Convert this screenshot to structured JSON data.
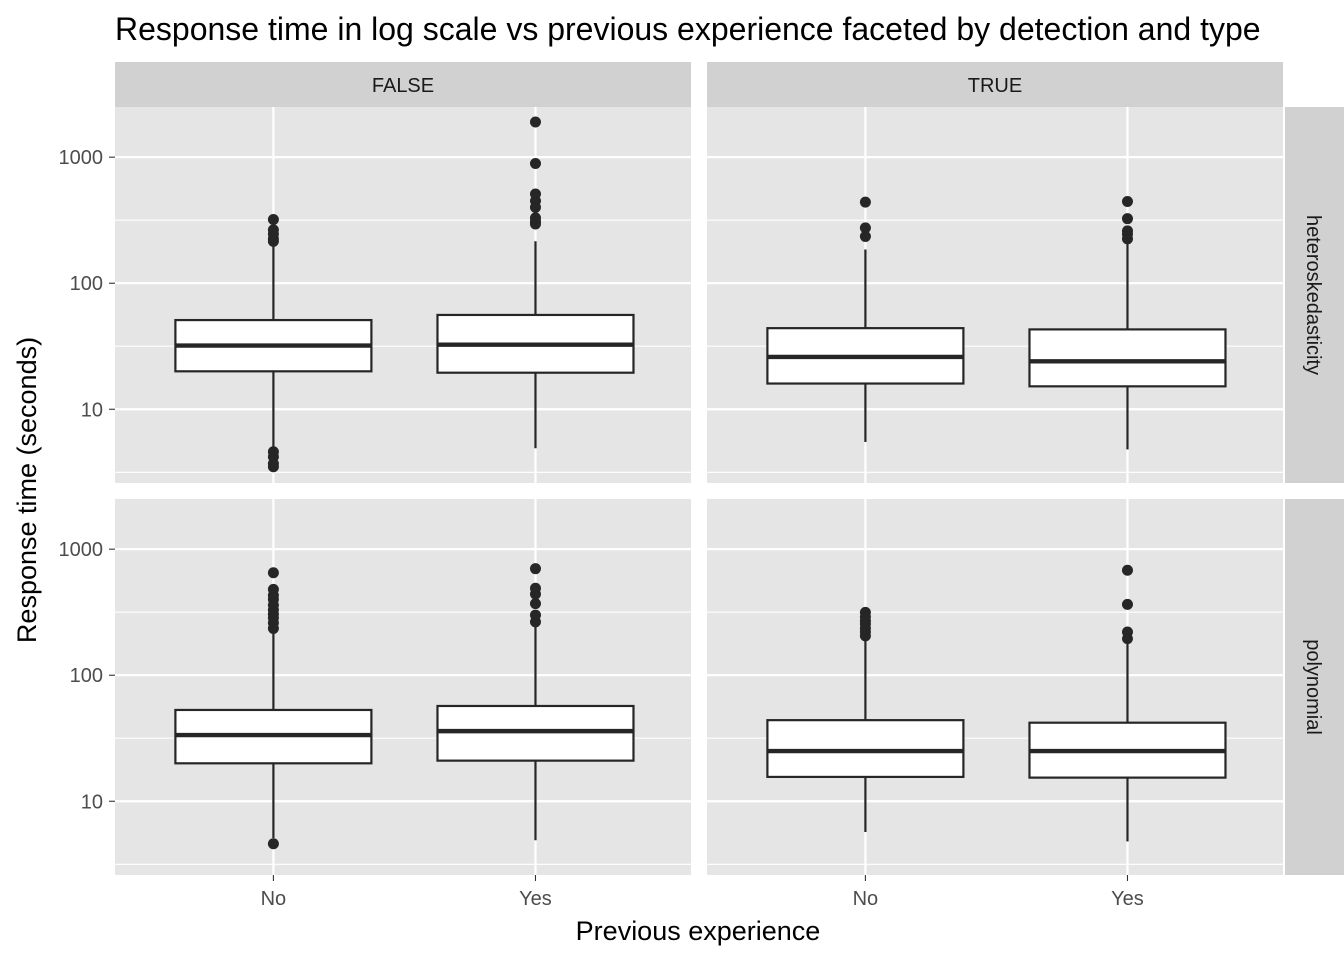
{
  "chart_data": {
    "type": "box",
    "title": "Response time in log scale vs previous experience faceted by detection and type",
    "xlabel": "Previous experience",
    "ylabel": "Response time (seconds)",
    "y_scale": "log10",
    "ylim": [
      2.6,
      2500
    ],
    "y_major_ticks": [
      10,
      100,
      1000
    ],
    "y_tick_labels": [
      "10",
      "100",
      "1000"
    ],
    "categories": [
      "No",
      "Yes"
    ],
    "grid": true,
    "col_facets": [
      "FALSE",
      "TRUE"
    ],
    "row_facets": [
      "heteroskedasticity",
      "polynomial"
    ],
    "panels": [
      {
        "col": "FALSE",
        "row": "heteroskedasticity",
        "boxes": [
          {
            "x": "No",
            "lower_whisker": 4.9,
            "q1": 20,
            "median": 32,
            "q3": 51,
            "upper_whisker": 205,
            "outliers": [
              3.5,
              3.7,
              4.2,
              4.6,
              215,
              225,
              245,
              265,
              320
            ]
          },
          {
            "x": "Yes",
            "lower_whisker": 4.9,
            "q1": 19.5,
            "median": 32.5,
            "q3": 56,
            "upper_whisker": 215,
            "outliers": [
              295,
              310,
              330,
              400,
              450,
              510,
              890,
              1900
            ]
          }
        ]
      },
      {
        "col": "TRUE",
        "row": "heteroskedasticity",
        "boxes": [
          {
            "x": "No",
            "lower_whisker": 5.5,
            "q1": 16,
            "median": 26,
            "q3": 44,
            "upper_whisker": 185,
            "outliers": [
              235,
              275,
              440
            ]
          },
          {
            "x": "Yes",
            "lower_whisker": 4.8,
            "q1": 15.2,
            "median": 24,
            "q3": 43,
            "upper_whisker": 215,
            "outliers": [
              225,
              245,
              260,
              325,
              445
            ]
          }
        ]
      },
      {
        "col": "FALSE",
        "row": "polynomial",
        "boxes": [
          {
            "x": "No",
            "lower_whisker": 5.1,
            "q1": 20,
            "median": 33.5,
            "q3": 53,
            "upper_whisker": 225,
            "outliers": [
              4.6,
              235,
              260,
              285,
              305,
              330,
              360,
              400,
              430,
              480,
              650
            ]
          },
          {
            "x": "Yes",
            "lower_whisker": 4.9,
            "q1": 21,
            "median": 36,
            "q3": 57,
            "upper_whisker": 255,
            "outliers": [
              265,
              300,
              370,
              440,
              490,
              700
            ]
          }
        ]
      },
      {
        "col": "TRUE",
        "row": "polynomial",
        "boxes": [
          {
            "x": "No",
            "lower_whisker": 5.7,
            "q1": 15.6,
            "median": 25,
            "q3": 44,
            "upper_whisker": 200,
            "outliers": [
              205,
              220,
              235,
              255,
              270,
              290,
              315
            ]
          },
          {
            "x": "Yes",
            "lower_whisker": 4.8,
            "q1": 15.4,
            "median": 25,
            "q3": 42,
            "upper_whisker": 185,
            "outliers": [
              195,
              220,
              365,
              680
            ]
          }
        ]
      }
    ]
  },
  "colors": {
    "panel_bg": "#e5e5e5",
    "grid": "#ffffff",
    "strip_bg": "#d1d1d1",
    "box_fill": "#ffffff",
    "box_line": "#262626",
    "outlier": "#262626"
  }
}
